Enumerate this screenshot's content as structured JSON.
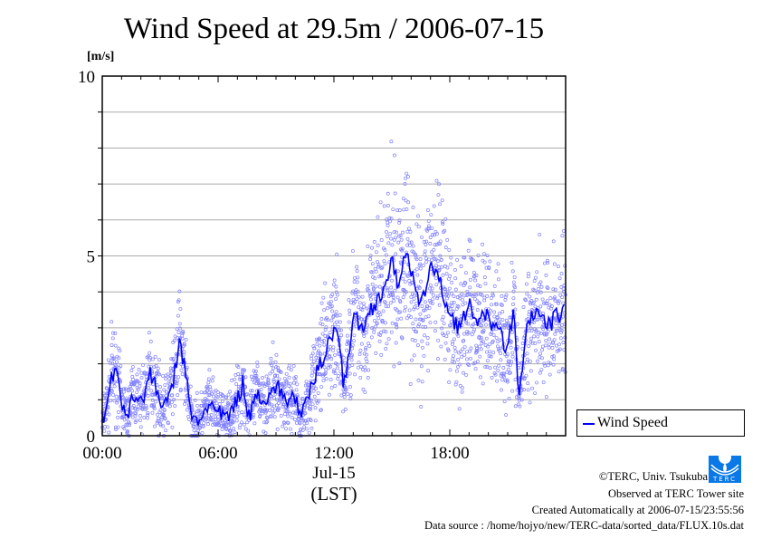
{
  "chart_data": {
    "type": "line",
    "title": "Wind Speed at 29.5m / 2006-07-15",
    "ylabel": "[m/s]",
    "xlabel": "(LST)",
    "date_label": "Jul-15",
    "ylim": [
      0,
      10
    ],
    "xlim_hours": [
      0,
      24
    ],
    "yticks": [
      "0",
      "5",
      "10"
    ],
    "xticks": [
      {
        "h": 0,
        "label": "00:00"
      },
      {
        "h": 6,
        "label": "06:00"
      },
      {
        "h": 12,
        "label": "12:00"
      },
      {
        "h": 18,
        "label": "18:00"
      }
    ],
    "grid": true,
    "legend": {
      "label": "Wind Speed",
      "placement": "right-bottom outside"
    },
    "series_color": "#0000ff",
    "scatter_color": "#8080ff",
    "series": [
      {
        "name": "Wind Speed (mean)",
        "x_hours": [
          0,
          0.3,
          0.5,
          0.8,
          1.0,
          1.3,
          1.6,
          2.0,
          2.5,
          2.8,
          3.2,
          3.7,
          4.0,
          4.3,
          4.6,
          5.0,
          5.5,
          6.0,
          6.5,
          7.0,
          7.3,
          7.6,
          8.0,
          8.5,
          9.0,
          9.5,
          10.0,
          10.3,
          10.5,
          11.0,
          11.5,
          12.0,
          12.3,
          12.5,
          12.8,
          13.0,
          13.5,
          14.0,
          14.5,
          15.0,
          15.3,
          15.7,
          16.0,
          16.5,
          17.0,
          17.5,
          18.0,
          18.5,
          19.0,
          19.5,
          20.0,
          20.5,
          21.0,
          21.3,
          21.6,
          22.0,
          22.5,
          23.0,
          23.5,
          23.9
        ],
        "values": [
          0.4,
          1.0,
          1.8,
          1.6,
          0.9,
          0.6,
          1.2,
          0.9,
          1.7,
          1.3,
          0.7,
          1.6,
          2.6,
          1.8,
          0.5,
          0.4,
          0.9,
          0.6,
          0.5,
          1.0,
          1.5,
          0.5,
          1.2,
          1.0,
          1.4,
          1.0,
          1.1,
          0.4,
          0.8,
          1.6,
          2.3,
          3.0,
          2.7,
          1.2,
          2.5,
          3.3,
          3.0,
          3.6,
          4.0,
          4.8,
          4.2,
          5.2,
          4.5,
          3.5,
          4.8,
          4.2,
          3.4,
          3.0,
          3.6,
          3.2,
          3.3,
          2.9,
          2.4,
          3.5,
          1.0,
          3.0,
          3.5,
          3.0,
          3.3,
          3.5
        ]
      }
    ]
  },
  "footer": {
    "copyright": "©TERC, Univ. Tsukuba",
    "observed": "Observed at TERC Tower site",
    "created": "Created Automatically at 2006-07-15/23:55:56",
    "source": "Data source : /home/hojyo/new/TERC-data/sorted_data/FLUX.10s.dat",
    "logo_text": "TERC"
  }
}
